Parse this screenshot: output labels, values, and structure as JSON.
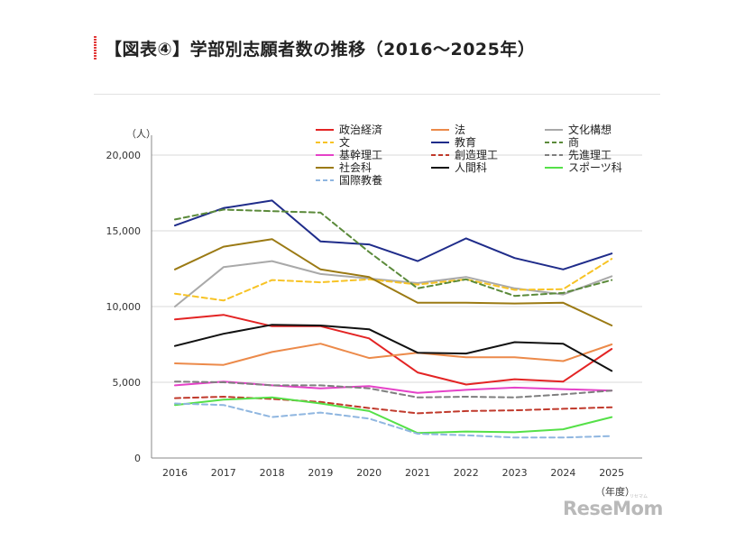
{
  "title": "【図表④】学部別志願者数の推移（2016〜2025年）",
  "watermark": "ReseMom",
  "watermark_ruby": "リセマム",
  "chart_data": {
    "type": "line",
    "title": "",
    "ylabel": "（人）",
    "xlabel": "（年度）",
    "ylim": [
      0,
      20000
    ],
    "yticks": [
      0,
      5000,
      10000,
      15000,
      20000
    ],
    "ytick_labels": [
      "0",
      "5,000",
      "10,000",
      "15,000",
      "20,000"
    ],
    "grid": true,
    "legend_position": "top-right",
    "x": [
      "2016",
      "2017",
      "2018",
      "2019",
      "2020",
      "2021",
      "2022",
      "2023",
      "2024",
      "2025"
    ],
    "series": [
      {
        "name": "政治経済",
        "color": "#e32424",
        "dash": false,
        "values": [
          9150,
          9450,
          8700,
          8700,
          7900,
          5650,
          4850,
          5200,
          5050,
          7200
        ]
      },
      {
        "name": "法",
        "color": "#ec8a4a",
        "dash": false,
        "values": [
          6250,
          6150,
          7000,
          7550,
          6600,
          6950,
          6650,
          6650,
          6400,
          7500
        ]
      },
      {
        "name": "文化構想",
        "color": "#a9a9a9",
        "dash": false,
        "values": [
          10000,
          12600,
          13000,
          12150,
          11850,
          11550,
          11950,
          11200,
          10800,
          12000
        ]
      },
      {
        "name": "文",
        "color": "#f7c325",
        "dash": true,
        "values": [
          10850,
          10400,
          11750,
          11600,
          11800,
          11450,
          11800,
          11100,
          11150,
          13150
        ]
      },
      {
        "name": "教育",
        "color": "#1f2c8a",
        "dash": false,
        "values": [
          15350,
          16500,
          17000,
          14300,
          14100,
          13000,
          14500,
          13200,
          12450,
          13500
        ]
      },
      {
        "name": "商",
        "color": "#5b8a3a",
        "dash": true,
        "values": [
          15750,
          16400,
          16300,
          16200,
          13600,
          11200,
          11800,
          10700,
          10900,
          11750
        ]
      },
      {
        "name": "基幹理工",
        "color": "#e542c8",
        "dash": false,
        "values": [
          4800,
          5050,
          4800,
          4600,
          4750,
          4300,
          4500,
          4650,
          4550,
          4450
        ]
      },
      {
        "name": "創造理工",
        "color": "#c0392b",
        "dash": true,
        "values": [
          3950,
          4050,
          3900,
          3700,
          3300,
          2950,
          3100,
          3150,
          3250,
          3350
        ]
      },
      {
        "name": "先進理工",
        "color": "#7f7f7f",
        "dash": true,
        "values": [
          5050,
          5000,
          4800,
          4800,
          4600,
          4000,
          4050,
          4000,
          4200,
          4450
        ]
      },
      {
        "name": "社会科",
        "color": "#9b7a14",
        "dash": false,
        "values": [
          12450,
          13950,
          14450,
          12450,
          11950,
          10250,
          10250,
          10200,
          10250,
          8750
        ]
      },
      {
        "name": "人間科",
        "color": "#111111",
        "dash": false,
        "values": [
          7400,
          8200,
          8800,
          8750,
          8500,
          6950,
          6900,
          7650,
          7550,
          5750
        ]
      },
      {
        "name": "スポーツ科",
        "color": "#55e048",
        "dash": false,
        "values": [
          3500,
          3850,
          4000,
          3600,
          3100,
          1650,
          1750,
          1700,
          1900,
          2700
        ]
      },
      {
        "name": "国際教養",
        "color": "#8fb6e0",
        "dash": true,
        "values": [
          3600,
          3500,
          2700,
          3000,
          2600,
          1600,
          1500,
          1350,
          1350,
          1450
        ]
      }
    ]
  }
}
